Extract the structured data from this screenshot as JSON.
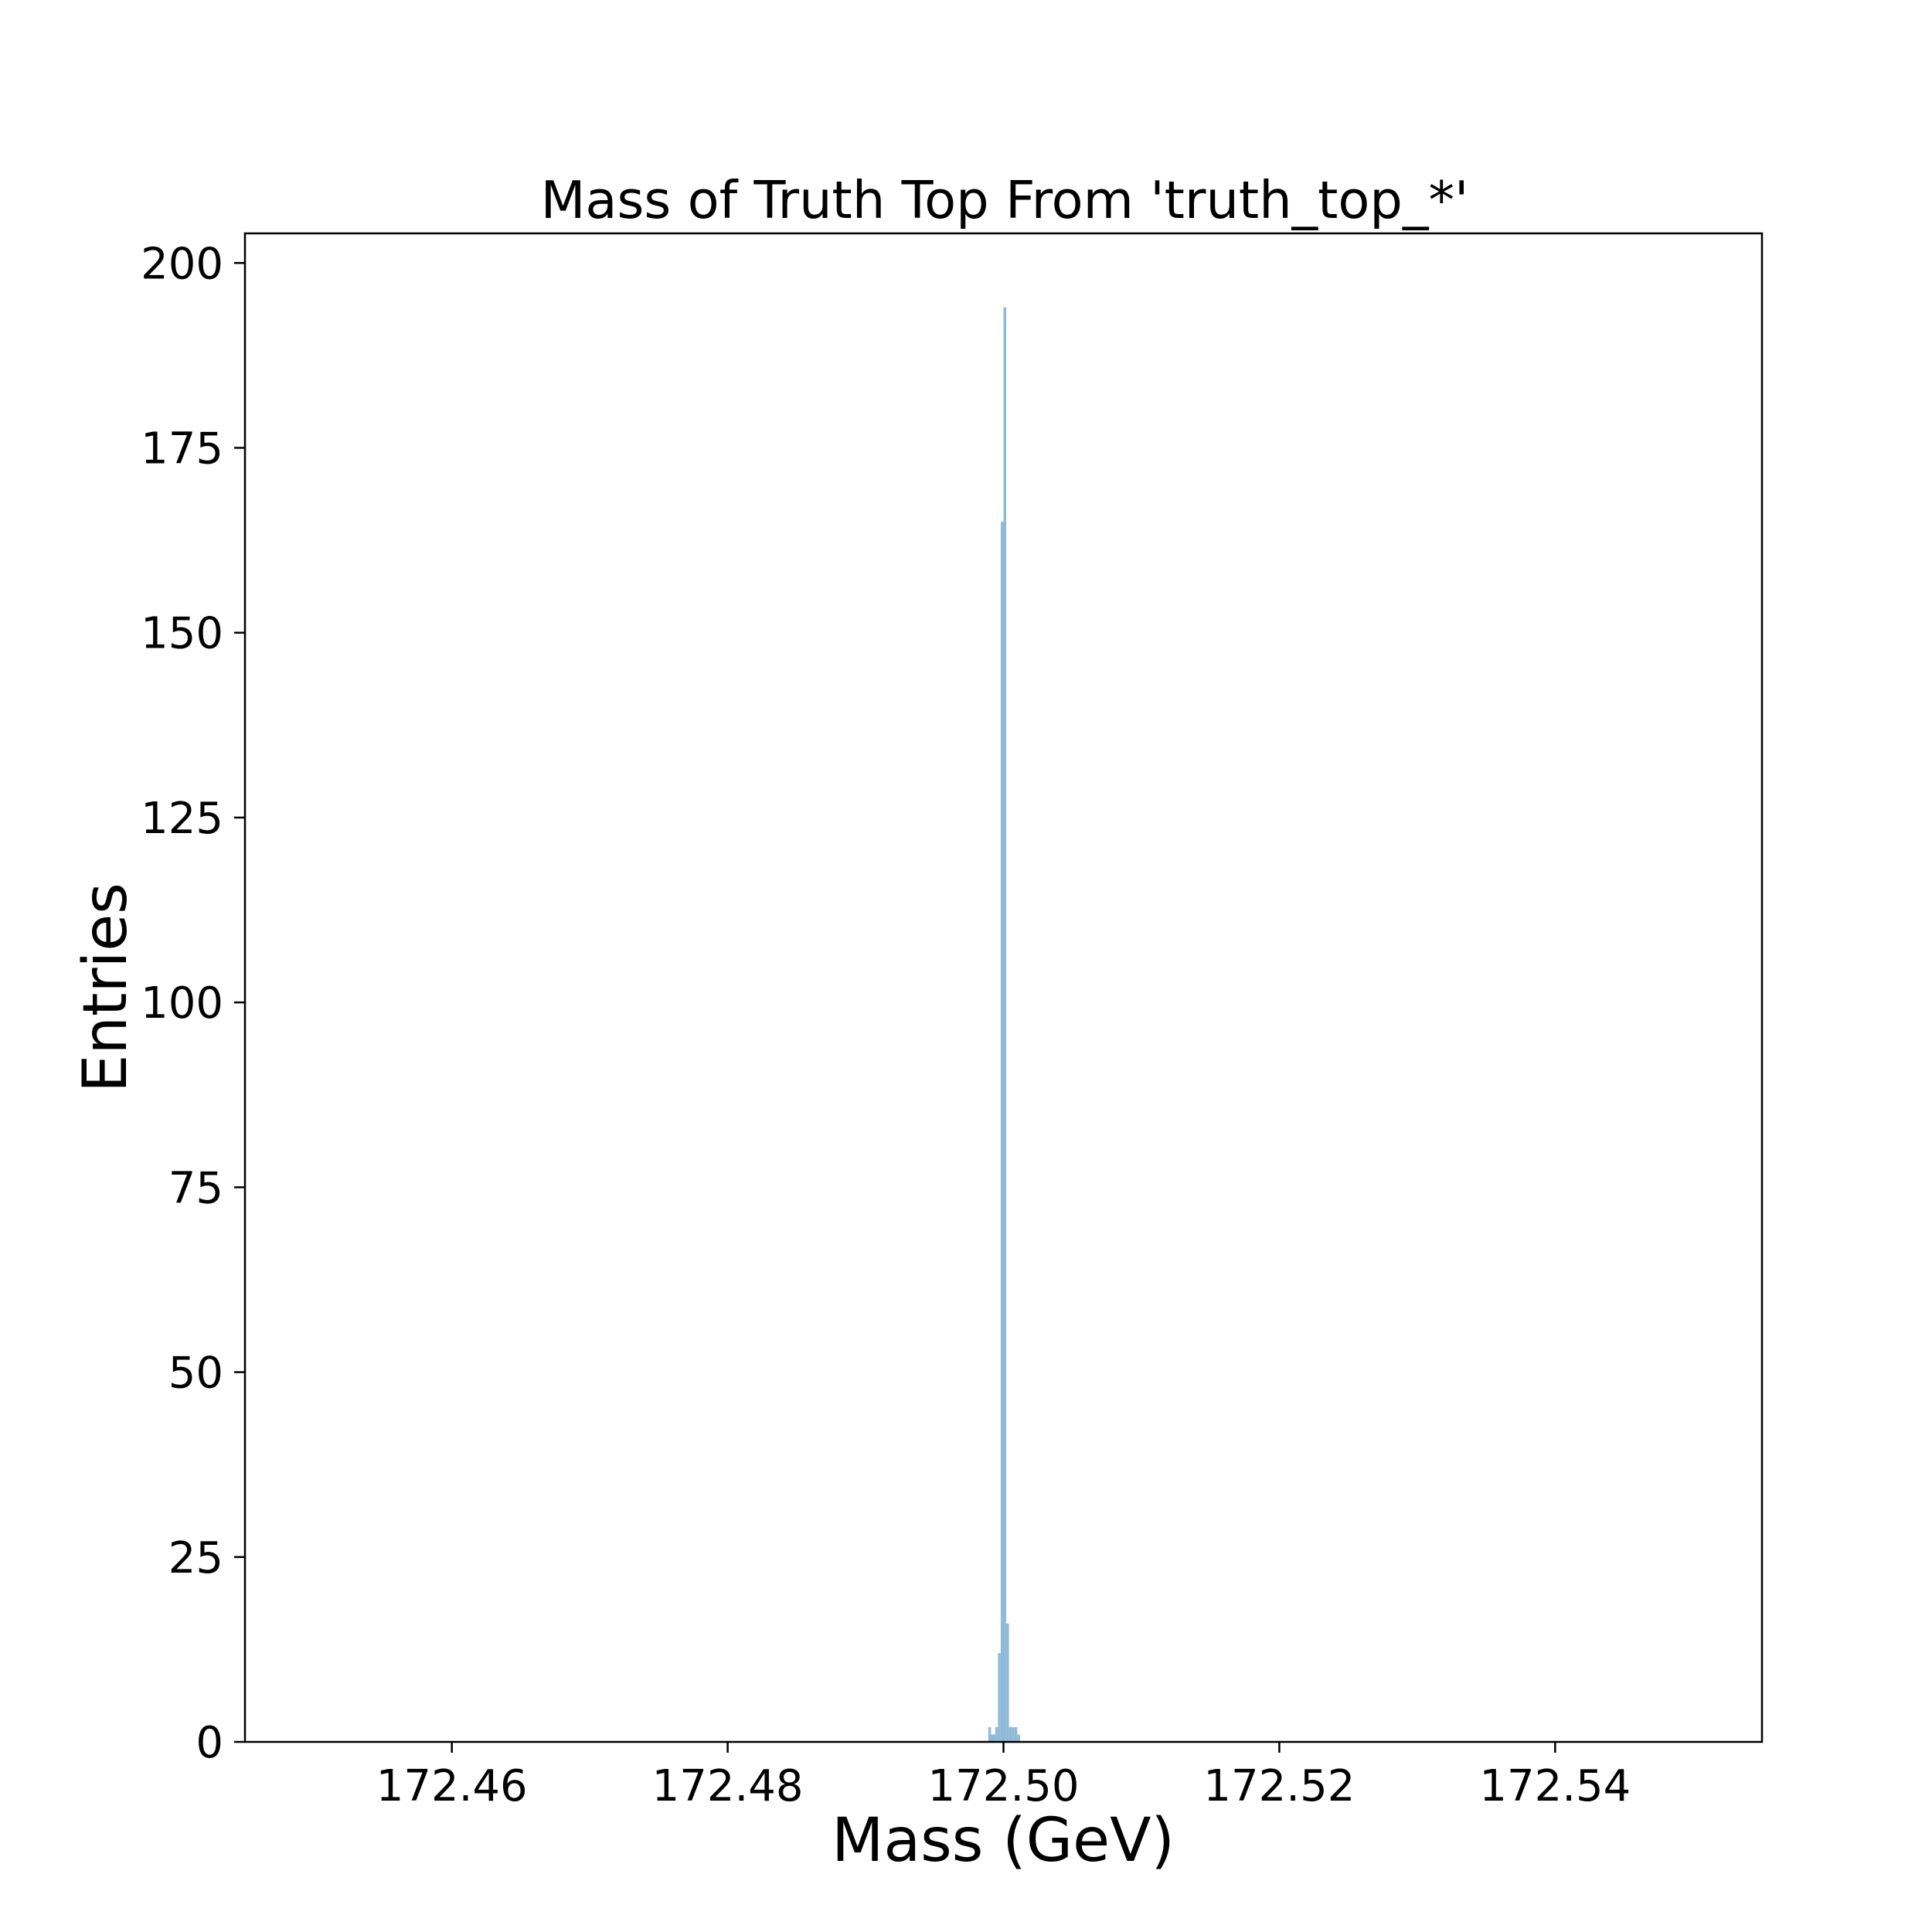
{
  "chart_data": {
    "type": "bar",
    "subtype": "histogram",
    "title": "Mass of Truth Top From 'truth_top_*'",
    "xlabel": "Mass (GeV)",
    "ylabel": "Entries",
    "xlim": [
      172.445,
      172.555
    ],
    "ylim": [
      0,
      204
    ],
    "xticks": [
      172.46,
      172.48,
      172.5,
      172.52,
      172.54
    ],
    "xtick_labels": [
      "172.46",
      "172.48",
      "172.50",
      "172.52",
      "172.54"
    ],
    "yticks": [
      0,
      25,
      50,
      75,
      100,
      125,
      150,
      175,
      200
    ],
    "ytick_labels": [
      "0",
      "25",
      "50",
      "75",
      "100",
      "125",
      "150",
      "175",
      "200"
    ],
    "grid": false,
    "legend": "none",
    "bar_color": "#8fbbd9",
    "bins": [
      {
        "x0": 172.4989,
        "x1": 172.4991,
        "count": 2
      },
      {
        "x0": 172.4991,
        "x2": 0,
        "x1": 172.4994,
        "count": 1
      },
      {
        "x0": 172.4994,
        "x1": 172.4996,
        "count": 2
      },
      {
        "x0": 172.4996,
        "x1": 172.4998,
        "count": 12
      },
      {
        "x0": 172.4998,
        "x1": 172.5,
        "count": 165
      },
      {
        "x0": 172.5,
        "x1": 172.5002,
        "count": 194
      },
      {
        "x0": 172.5002,
        "x1": 172.5004,
        "count": 16
      },
      {
        "x0": 172.5004,
        "x1": 172.5006,
        "count": 2
      },
      {
        "x0": 172.5006,
        "x1": 172.5008,
        "count": 2
      },
      {
        "x0": 172.5008,
        "x1": 172.501,
        "count": 2
      },
      {
        "x0": 172.501,
        "x1": 172.5012,
        "count": 1
      }
    ]
  }
}
